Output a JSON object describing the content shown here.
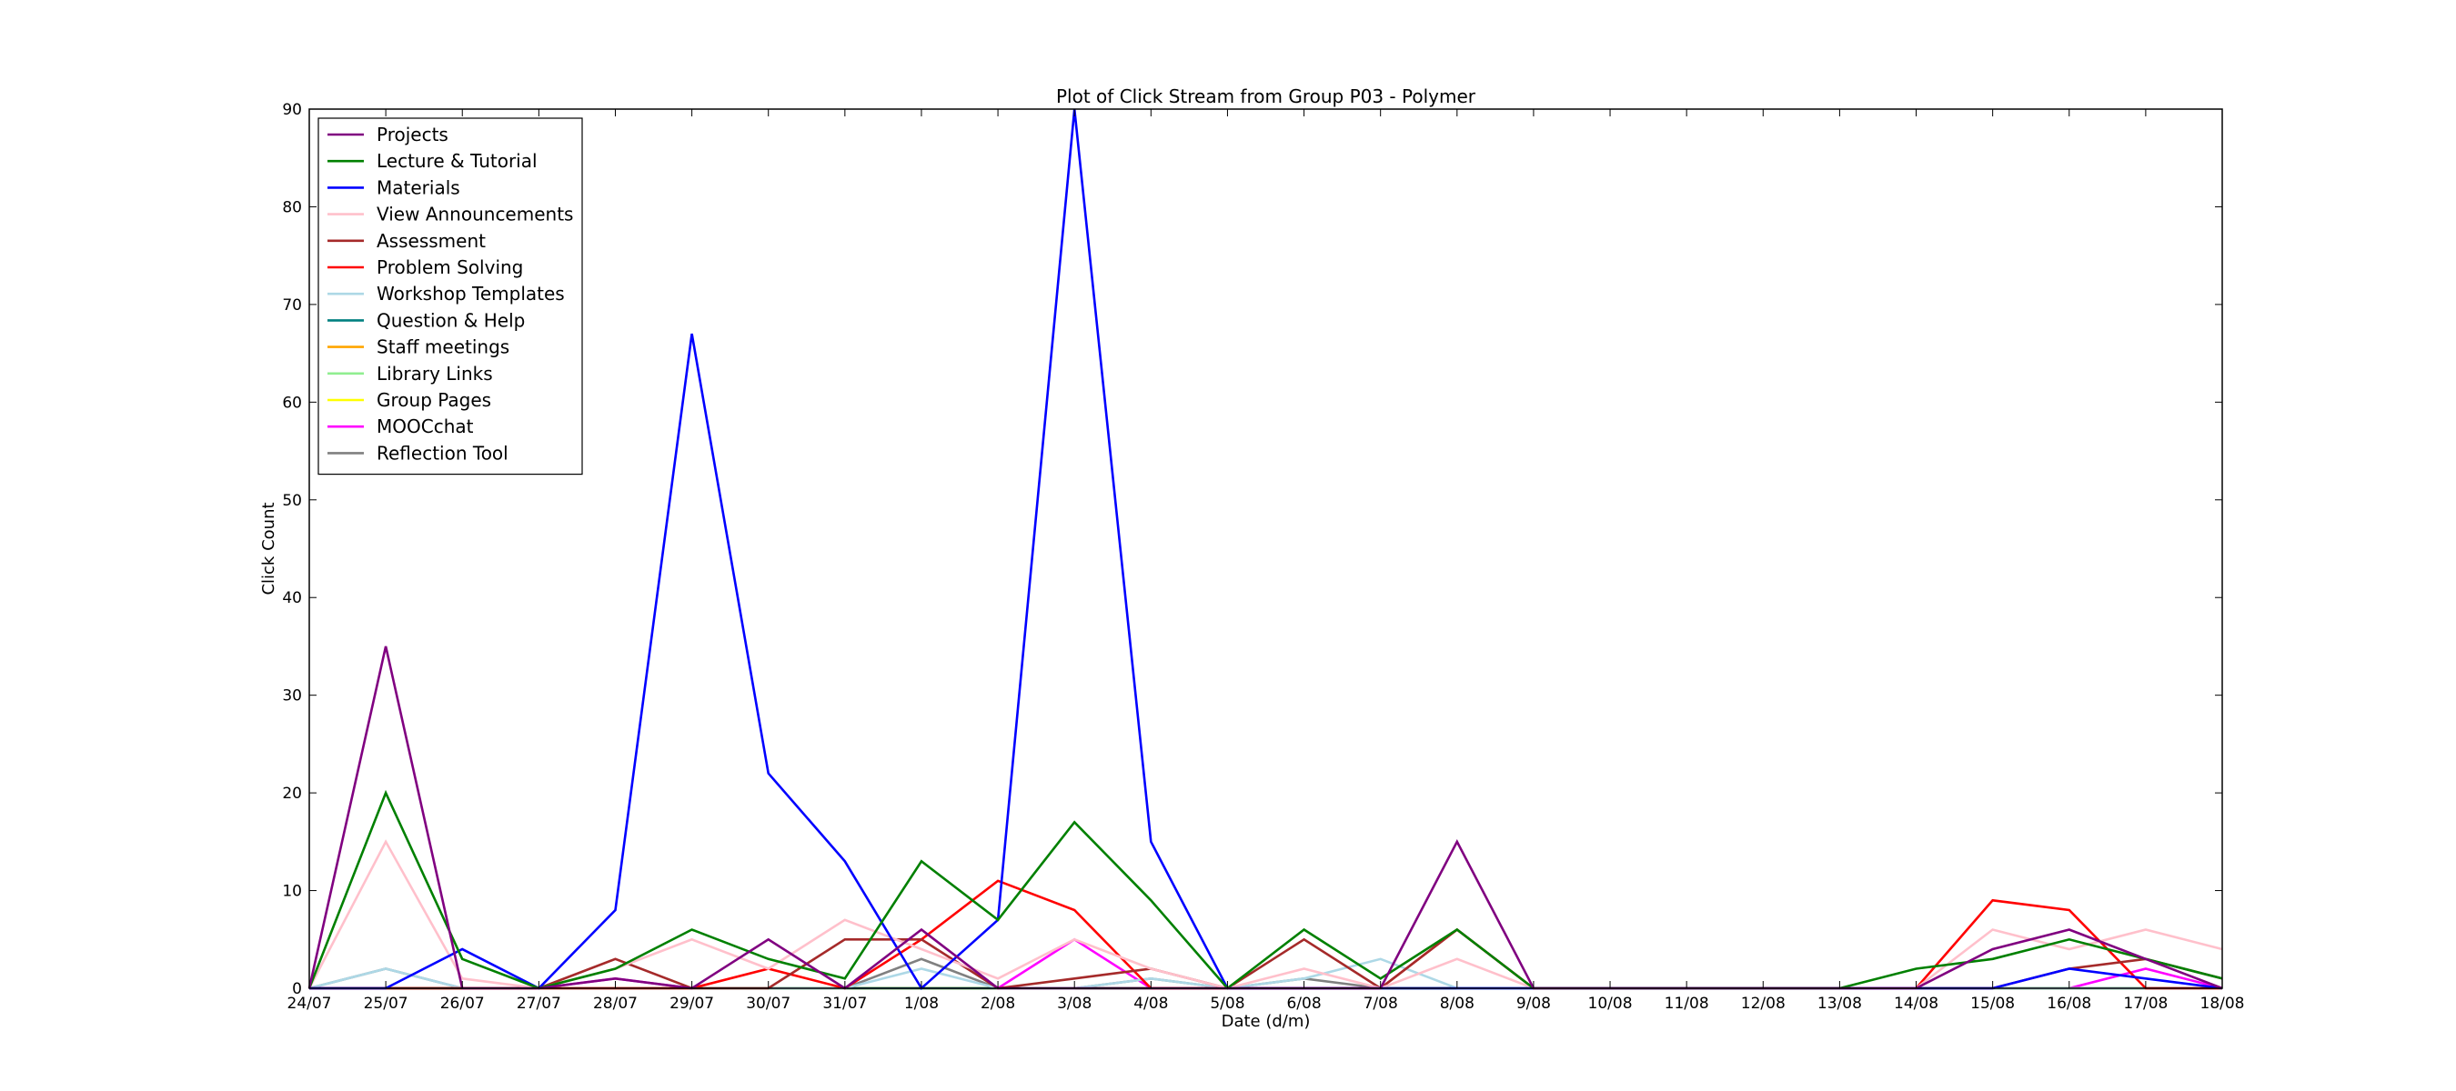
{
  "chart_data": {
    "type": "line",
    "title": "Plot of Click Stream from Group P03 - Polymer",
    "xlabel": "Date (d/m)",
    "ylabel": "Click Count",
    "ylim": [
      0,
      90
    ],
    "yticks": [
      0,
      10,
      20,
      30,
      40,
      50,
      60,
      70,
      80,
      90
    ],
    "grid": false,
    "legend_position": "top-left",
    "categories": [
      "24/07",
      "25/07",
      "26/07",
      "27/07",
      "28/07",
      "29/07",
      "30/07",
      "31/07",
      "1/08",
      "2/08",
      "3/08",
      "4/08",
      "5/08",
      "6/08",
      "7/08",
      "8/08",
      "9/08",
      "10/08",
      "11/08",
      "12/08",
      "13/08",
      "14/08",
      "15/08",
      "16/08",
      "17/08",
      "18/08"
    ],
    "series": [
      {
        "name": "Projects",
        "color": "#800080",
        "values": [
          0,
          35,
          0,
          0,
          1,
          0,
          5,
          0,
          6,
          0,
          0,
          0,
          0,
          0,
          0,
          15,
          0,
          0,
          0,
          0,
          0,
          0,
          4,
          6,
          3,
          0
        ]
      },
      {
        "name": "Lecture & Tutorial",
        "color": "#008000",
        "values": [
          0,
          20,
          3,
          0,
          2,
          6,
          3,
          1,
          13,
          7,
          17,
          9,
          0,
          6,
          1,
          6,
          0,
          0,
          0,
          0,
          0,
          2,
          3,
          5,
          3,
          1
        ]
      },
      {
        "name": "Materials",
        "color": "#0000ff",
        "values": [
          0,
          0,
          4,
          0,
          8,
          67,
          22,
          13,
          0,
          7,
          90,
          15,
          0,
          0,
          0,
          0,
          0,
          0,
          0,
          0,
          0,
          0,
          0,
          2,
          1,
          0
        ]
      },
      {
        "name": "View Announcements",
        "color": "#ffc0cb",
        "values": [
          0,
          15,
          1,
          0,
          2,
          5,
          2,
          7,
          4,
          1,
          5,
          2,
          0,
          2,
          0,
          3,
          0,
          0,
          0,
          0,
          0,
          0,
          6,
          4,
          6,
          4
        ]
      },
      {
        "name": "Assessment",
        "color": "#a52a2a",
        "values": [
          0,
          0,
          0,
          0,
          3,
          0,
          0,
          5,
          5,
          0,
          1,
          2,
          0,
          5,
          0,
          6,
          0,
          0,
          0,
          0,
          0,
          0,
          0,
          2,
          3,
          1
        ]
      },
      {
        "name": "Problem Solving",
        "color": "#ff0000",
        "values": [
          0,
          0,
          0,
          0,
          0,
          0,
          2,
          0,
          5,
          11,
          8,
          0,
          0,
          0,
          0,
          6,
          0,
          0,
          0,
          0,
          0,
          0,
          9,
          8,
          0,
          0
        ]
      },
      {
        "name": "Workshop Templates",
        "color": "#add8e6",
        "values": [
          0,
          2,
          0,
          0,
          0,
          0,
          0,
          0,
          2,
          0,
          0,
          1,
          0,
          1,
          3,
          0,
          0,
          0,
          0,
          0,
          0,
          0,
          0,
          0,
          0,
          0
        ]
      },
      {
        "name": "Question & Help",
        "color": "#008080",
        "values": [
          0,
          0,
          0,
          0,
          0,
          0,
          0,
          0,
          0,
          0,
          0,
          0,
          0,
          0,
          0,
          0,
          0,
          0,
          0,
          0,
          0,
          0,
          0,
          0,
          0,
          0
        ]
      },
      {
        "name": "Staff meetings",
        "color": "#ffa500",
        "values": [
          0,
          0,
          0,
          0,
          0,
          0,
          0,
          0,
          0,
          0,
          0,
          0,
          0,
          0,
          0,
          0,
          0,
          0,
          0,
          0,
          0,
          0,
          0,
          0,
          0,
          0
        ]
      },
      {
        "name": "Library Links",
        "color": "#90ee90",
        "values": [
          0,
          0,
          0,
          0,
          0,
          0,
          0,
          0,
          0,
          0,
          0,
          0,
          0,
          0,
          0,
          0,
          0,
          0,
          0,
          0,
          0,
          0,
          0,
          0,
          0,
          0
        ]
      },
      {
        "name": "Group Pages",
        "color": "#ffff00",
        "values": [
          0,
          0,
          0,
          0,
          0,
          0,
          0,
          0,
          0,
          0,
          0,
          0,
          0,
          0,
          0,
          0,
          0,
          0,
          0,
          0,
          0,
          0,
          0,
          0,
          0,
          0
        ]
      },
      {
        "name": "MOOCchat",
        "color": "#ff00ff",
        "values": [
          0,
          0,
          0,
          0,
          1,
          0,
          0,
          0,
          0,
          0,
          5,
          0,
          0,
          0,
          0,
          0,
          0,
          0,
          0,
          0,
          0,
          0,
          0,
          0,
          2,
          0
        ]
      },
      {
        "name": "Reflection Tool",
        "color": "#808080",
        "values": [
          0,
          2,
          0,
          0,
          0,
          0,
          0,
          0,
          3,
          0,
          0,
          1,
          0,
          1,
          0,
          0,
          0,
          0,
          0,
          0,
          0,
          0,
          0,
          0,
          0,
          0
        ]
      }
    ]
  }
}
